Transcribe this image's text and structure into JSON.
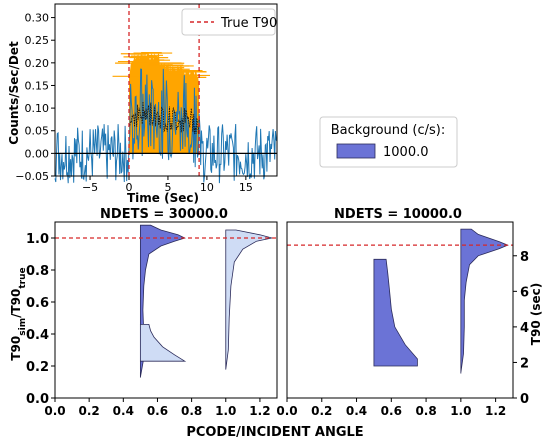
{
  "colors": {
    "signal": "#ffa500",
    "lightcurve": "#1f77b4",
    "t90_line": "#d62728",
    "violin_dark": "#6b73d6",
    "violin_light": "#cfdcf5",
    "edge": "#2b2b5a"
  },
  "chart_data": [
    {
      "type": "line",
      "id": "lightcurve",
      "xlabel": "Time (Sec)",
      "ylabel": "Counts/Sec/Det",
      "xlim": [
        -9.5,
        19
      ],
      "ylim": [
        -0.05,
        0.33
      ],
      "x_ticks": [
        -5,
        0,
        5,
        10,
        15
      ],
      "y_ticks": [
        -0.05,
        0.0,
        0.05,
        0.1,
        0.15,
        0.2,
        0.25,
        0.3
      ],
      "true_t90": [
        0,
        9
      ],
      "legend": {
        "label": "True T90",
        "position": "top-right"
      },
      "signal_envelope": {
        "x": [
          0,
          0.2,
          0.8,
          3.9,
          4.0,
          8.9,
          9.0
        ],
        "upper": [
          0.18,
          0.2,
          0.225,
          0.225,
          0.205,
          0.185,
          0.17
        ]
      },
      "background_mean": 0.0,
      "background_noise_amplitude": 0.06
    },
    {
      "type": "legend_box",
      "id": "background-legend",
      "title": "Background (c/s):",
      "entries": [
        {
          "label": "1000.0",
          "color": "#6b73d6"
        }
      ]
    },
    {
      "type": "violin",
      "id": "ndets-30000",
      "title": "NDETS = 30000.0",
      "ylabel": "T90$_{sim}$/T90$_{true}$",
      "ylabel_parts": [
        "T90",
        "sim",
        "/T90",
        "true"
      ],
      "xlim": [
        0,
        1.3
      ],
      "ylim": [
        0,
        1.1
      ],
      "x_ticks": [
        "0.0",
        "0.2",
        "0.4",
        "0.6",
        "0.8",
        "1.0",
        "1.2"
      ],
      "y_ticks": [
        "0.0",
        "0.2",
        "0.4",
        "0.6",
        "0.8",
        "1.0"
      ],
      "reference_ratio": 1.0,
      "violins": [
        {
          "x": 0.5,
          "side": "right",
          "style": "dark",
          "ymin": 0.13,
          "ymax": 1.08,
          "profile": [
            [
              0.13,
              0.0
            ],
            [
              0.25,
              0.02
            ],
            [
              0.4,
              0.02
            ],
            [
              0.55,
              0.015
            ],
            [
              0.7,
              0.02
            ],
            [
              0.8,
              0.03
            ],
            [
              0.9,
              0.05
            ],
            [
              0.95,
              0.12
            ],
            [
              0.98,
              0.2
            ],
            [
              1.0,
              0.26
            ],
            [
              1.02,
              0.22
            ],
            [
              1.05,
              0.12
            ],
            [
              1.08,
              0.06
            ]
          ]
        },
        {
          "x": 0.5,
          "side": "right",
          "style": "light",
          "ymin": 0.23,
          "ymax": 0.46,
          "profile": [
            [
              0.23,
              0.26
            ],
            [
              0.27,
              0.2
            ],
            [
              0.32,
              0.13
            ],
            [
              0.38,
              0.08
            ],
            [
              0.42,
              0.06
            ],
            [
              0.46,
              0.05
            ]
          ]
        },
        {
          "x": 1.0,
          "side": "right",
          "style": "light",
          "ymin": 0.18,
          "ymax": 1.05,
          "profile": [
            [
              0.18,
              0.0
            ],
            [
              0.3,
              0.015
            ],
            [
              0.5,
              0.02
            ],
            [
              0.7,
              0.03
            ],
            [
              0.85,
              0.05
            ],
            [
              0.93,
              0.1
            ],
            [
              0.98,
              0.18
            ],
            [
              1.0,
              0.27
            ],
            [
              1.02,
              0.2
            ],
            [
              1.05,
              0.06
            ]
          ]
        }
      ]
    },
    {
      "type": "violin",
      "id": "ndets-10000",
      "title": "NDETS = 10000.0",
      "ylabel": "T90 (sec)",
      "xlim": [
        0,
        1.3
      ],
      "ylim": [
        0,
        9.9
      ],
      "x_ticks": [
        "0.0",
        "0.2",
        "0.4",
        "0.6",
        "0.8",
        "1.0",
        "1.2"
      ],
      "y_ticks": [
        "0",
        "2",
        "4",
        "6",
        "8"
      ],
      "reference_t90": 8.6,
      "violins": [
        {
          "x": 0.5,
          "side": "right",
          "style": "dark",
          "ymin": 1.8,
          "ymax": 7.8,
          "profile": [
            [
              1.8,
              0.25
            ],
            [
              2.2,
              0.25
            ],
            [
              3.0,
              0.18
            ],
            [
              4.0,
              0.12
            ],
            [
              5.0,
              0.1
            ],
            [
              6.0,
              0.09
            ],
            [
              7.0,
              0.08
            ],
            [
              7.8,
              0.07
            ]
          ]
        },
        {
          "x": 1.0,
          "side": "right",
          "style": "dark",
          "ymin": 1.4,
          "ymax": 9.5,
          "profile": [
            [
              1.4,
              0.0
            ],
            [
              2.5,
              0.015
            ],
            [
              4.0,
              0.02
            ],
            [
              5.5,
              0.02
            ],
            [
              6.5,
              0.03
            ],
            [
              7.5,
              0.05
            ],
            [
              8.0,
              0.1
            ],
            [
              8.4,
              0.22
            ],
            [
              8.6,
              0.27
            ],
            [
              8.8,
              0.22
            ],
            [
              9.2,
              0.1
            ],
            [
              9.5,
              0.06
            ]
          ]
        }
      ]
    }
  ],
  "shared_xlabel": "PCODE/INCIDENT ANGLE"
}
